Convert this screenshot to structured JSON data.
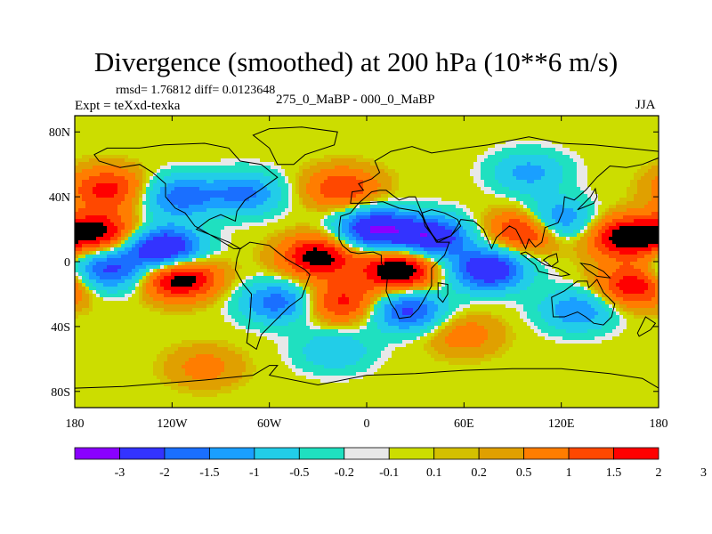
{
  "title": "Divergence (smoothed) at 200 hPa (10**6 m/s)",
  "stats": {
    "text": "rmsd= 1.76812 diff= 0.0123648"
  },
  "left_label": "Expt = teXxd-texka",
  "center_label": "275_0_MaBP - 000_0_MaBP",
  "right_label": "JJA",
  "chart_data": {
    "type": "heatmap",
    "title": "Divergence (smoothed) at 200 hPa (10**6 m/s)",
    "projection": "cylindrical equidistant, global",
    "xlim": [
      -180,
      180
    ],
    "ylim": [
      -90,
      90
    ],
    "x_ticks": [
      {
        "value": -180,
        "label": "180"
      },
      {
        "value": -120,
        "label": "120W"
      },
      {
        "value": -60,
        "label": "60W"
      },
      {
        "value": 0,
        "label": "0"
      },
      {
        "value": 60,
        "label": "60E"
      },
      {
        "value": 120,
        "label": "120E"
      },
      {
        "value": 180,
        "label": "180"
      }
    ],
    "y_ticks": [
      {
        "value": 80,
        "label": "80N"
      },
      {
        "value": 40,
        "label": "40N"
      },
      {
        "value": 0,
        "label": "0"
      },
      {
        "value": -40,
        "label": "40S"
      },
      {
        "value": -80,
        "label": "80S"
      }
    ],
    "colorbar": {
      "orientation": "horizontal",
      "colors": [
        "#8a00ff",
        "#3333ff",
        "#1a6fff",
        "#1a9fff",
        "#22cde8",
        "#1fe0c0",
        "#e8e8e8",
        "#ccdd00",
        "#d4c000",
        "#e0a000",
        "#ff7d00",
        "#ff4800",
        "#ff0000"
      ],
      "boundary_labels": [
        "-3",
        "-2",
        "-1.5",
        "-1",
        "-0.5",
        "-0.2",
        "-0.1",
        "0.1",
        "0.2",
        "0.5",
        "1",
        "1.5",
        "2",
        "3"
      ]
    },
    "features": [
      {
        "name": "negative divergence band, eastern Pacific",
        "lon": -125,
        "lat": 8,
        "value": -3.2
      },
      {
        "name": "negative divergence, central Pacific",
        "lon": -160,
        "lat": -5,
        "value": -2.2
      },
      {
        "name": "positive divergence, tropical Pacific",
        "lon": -115,
        "lat": -10,
        "value": 2.6
      },
      {
        "name": "positive divergence, western Pacific",
        "lon": -165,
        "lat": 18,
        "value": 2.2
      },
      {
        "name": "positive divergence, North Pacific",
        "lon": -160,
        "lat": 45,
        "value": 1.7
      },
      {
        "name": "negative divergence, NE Pacific",
        "lon": -115,
        "lat": 40,
        "value": -1.8
      },
      {
        "name": "negative divergence, Canada",
        "lon": -75,
        "lat": 42,
        "value": -1.6
      },
      {
        "name": "positive divergence, North Atlantic",
        "lon": -15,
        "lat": 45,
        "value": 1.5
      },
      {
        "name": "positive divergence, tropical Atlantic",
        "lon": -30,
        "lat": 3,
        "value": 2.4
      },
      {
        "name": "negative divergence, Mediterranean",
        "lon": 5,
        "lat": 20,
        "value": -3.0
      },
      {
        "name": "positive divergence, central Africa",
        "lon": 20,
        "lat": -5,
        "value": 2.8
      },
      {
        "name": "negative divergence, Arabia",
        "lon": 40,
        "lat": 15,
        "value": -2.8
      },
      {
        "name": "negative divergence, Indian Ocean",
        "lon": 75,
        "lat": -5,
        "value": -2.8
      },
      {
        "name": "positive divergence, South Asia",
        "lon": 100,
        "lat": 20,
        "value": 2.5
      },
      {
        "name": "negative divergence, SE Asia",
        "lon": 115,
        "lat": 25,
        "value": -2.3
      },
      {
        "name": "positive divergence, NW Pacific",
        "lon": 160,
        "lat": 15,
        "value": 2.5
      },
      {
        "name": "positive divergence, South Pacific",
        "lon": 165,
        "lat": -15,
        "value": 2.0
      },
      {
        "name": "negative divergence, South America",
        "lon": -55,
        "lat": -25,
        "value": -1.8
      },
      {
        "name": "negative divergence, southern Africa",
        "lon": 25,
        "lat": -30,
        "value": -2.2
      },
      {
        "name": "positive divergence, South Atlantic",
        "lon": -15,
        "lat": -25,
        "value": 1.7
      },
      {
        "name": "negative divergence, Southern Ocean",
        "lon": -20,
        "lat": -55,
        "value": -1.0
      },
      {
        "name": "negative divergence, Australia",
        "lon": 130,
        "lat": -30,
        "value": -1.5
      },
      {
        "name": "negative divergence, Siberia",
        "lon": 100,
        "lat": 55,
        "value": -1.2
      },
      {
        "name": "positive divergence, southern midlatitudes",
        "lon": 60,
        "lat": -45,
        "value": 0.8
      },
      {
        "name": "positive divergence, Antarctic rim",
        "lon": -100,
        "lat": -65,
        "value": 0.7
      }
    ]
  }
}
